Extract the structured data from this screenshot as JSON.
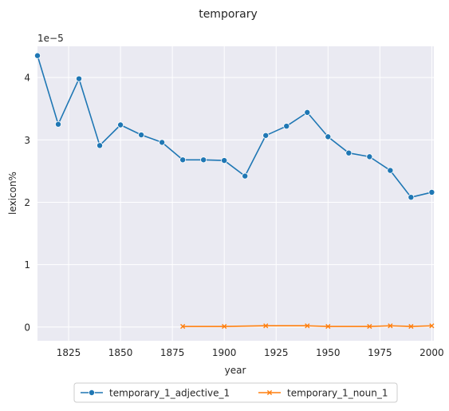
{
  "chart_data": {
    "type": "line",
    "title": "temporary",
    "xlabel": "year",
    "ylabel": "lexicon%",
    "y_scale_label": "1e−5",
    "xlim": [
      1810,
      2001
    ],
    "ylim": [
      -0.22,
      4.5
    ],
    "x_ticks": [
      1825,
      1850,
      1875,
      1900,
      1925,
      1950,
      1975,
      2000
    ],
    "y_ticks": [
      0,
      1,
      2,
      3,
      4
    ],
    "grid": true,
    "legend_position": "bottom-center",
    "background": "#eaeaf2",
    "series": [
      {
        "name": "temporary_1_adjective_1",
        "color": "#1f77b4",
        "marker": "circle",
        "x": [
          1810,
          1820,
          1830,
          1840,
          1850,
          1860,
          1870,
          1880,
          1890,
          1900,
          1910,
          1920,
          1930,
          1940,
          1950,
          1960,
          1970,
          1980,
          1990,
          2000
        ],
        "y": [
          4.35,
          3.25,
          3.98,
          2.91,
          3.24,
          3.08,
          2.96,
          2.68,
          2.68,
          2.67,
          2.42,
          3.07,
          3.22,
          3.44,
          3.05,
          2.79,
          2.73,
          2.51,
          2.08,
          2.16
        ]
      },
      {
        "name": "temporary_1_noun_1",
        "color": "#ff7f0e",
        "marker": "x",
        "x": [
          1880,
          1900,
          1920,
          1940,
          1950,
          1970,
          1980,
          1990,
          2000
        ],
        "y": [
          0.01,
          0.01,
          0.02,
          0.02,
          0.01,
          0.01,
          0.02,
          0.01,
          0.02
        ]
      }
    ]
  }
}
